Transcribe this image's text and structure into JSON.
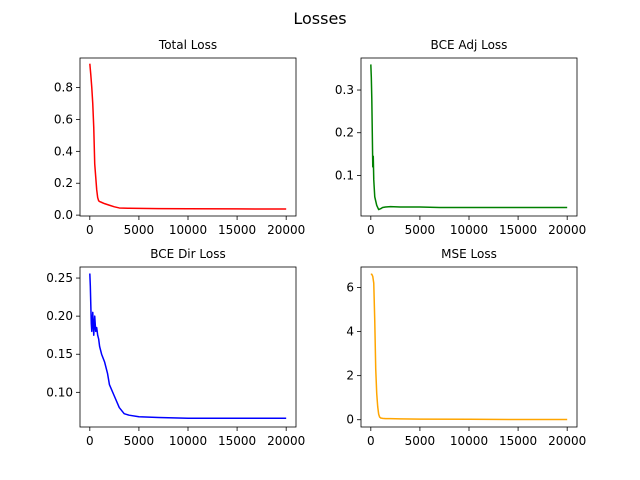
{
  "figure": {
    "title": "Losses"
  },
  "chart_data": [
    {
      "type": "line",
      "title": "Total Loss",
      "color": "#ff0000",
      "xlim": [
        -1000,
        21000
      ],
      "ylim": [
        -0.0055,
        0.9855
      ],
      "xticks": [
        0,
        5000,
        10000,
        15000,
        20000
      ],
      "xtick_labels": [
        "0",
        "5000",
        "10000",
        "15000",
        "20000"
      ],
      "yticks": [
        0.0,
        0.2,
        0.4,
        0.6,
        0.8
      ],
      "ytick_labels": [
        "0.0",
        "0.2",
        "0.4",
        "0.6",
        "0.8"
      ],
      "series": [
        {
          "x": [
            0,
            100,
            200,
            300,
            400,
            500,
            600,
            700,
            800,
            900,
            1000,
            1200,
            1500,
            2000,
            2500,
            3000,
            4000,
            5000,
            7000,
            10000,
            15000,
            20000
          ],
          "values": [
            0.95,
            0.88,
            0.8,
            0.7,
            0.55,
            0.32,
            0.24,
            0.16,
            0.11,
            0.09,
            0.085,
            0.08,
            0.072,
            0.062,
            0.052,
            0.045,
            0.043,
            0.042,
            0.041,
            0.04,
            0.039,
            0.038
          ]
        }
      ]
    },
    {
      "type": "line",
      "title": "BCE Adj Loss",
      "color": "#008000",
      "xlim": [
        -1000,
        21000
      ],
      "ylim": [
        0.005,
        0.375
      ],
      "xticks": [
        0,
        5000,
        10000,
        15000,
        20000
      ],
      "xtick_labels": [
        "0",
        "5000",
        "10000",
        "15000",
        "20000"
      ],
      "yticks": [
        0.1,
        0.2,
        0.3
      ],
      "ytick_labels": [
        "0.1",
        "0.2",
        "0.3"
      ],
      "series": [
        {
          "x": [
            0,
            50,
            100,
            150,
            200,
            250,
            300,
            350,
            400,
            500,
            600,
            700,
            800,
            1000,
            1200,
            1500,
            2000,
            3000,
            5000,
            7000,
            10000,
            15000,
            20000
          ],
          "values": [
            0.36,
            0.33,
            0.28,
            0.2,
            0.12,
            0.145,
            0.09,
            0.07,
            0.05,
            0.04,
            0.03,
            0.025,
            0.02,
            0.022,
            0.025,
            0.026,
            0.027,
            0.026,
            0.026,
            0.025,
            0.025,
            0.025,
            0.025
          ]
        }
      ]
    },
    {
      "type": "line",
      "title": "BCE Dir Loss",
      "color": "#0000ff",
      "xlim": [
        -1000,
        21000
      ],
      "ylim": [
        0.0545,
        0.2645
      ],
      "xticks": [
        0,
        5000,
        10000,
        15000,
        20000
      ],
      "xtick_labels": [
        "0",
        "5000",
        "10000",
        "15000",
        "20000"
      ],
      "yticks": [
        0.1,
        0.15,
        0.2,
        0.25
      ],
      "ytick_labels": [
        "0.10",
        "0.15",
        "0.20",
        "0.25"
      ],
      "series": [
        {
          "x": [
            0,
            50,
            100,
            150,
            200,
            300,
            400,
            500,
            600,
            700,
            800,
            900,
            1000,
            1200,
            1500,
            1800,
            2000,
            2500,
            3000,
            3500,
            4000,
            5000,
            7000,
            10000,
            15000,
            20000
          ],
          "values": [
            0.256,
            0.24,
            0.215,
            0.19,
            0.18,
            0.205,
            0.175,
            0.2,
            0.18,
            0.185,
            0.175,
            0.17,
            0.16,
            0.15,
            0.14,
            0.125,
            0.11,
            0.095,
            0.08,
            0.072,
            0.07,
            0.068,
            0.067,
            0.066,
            0.066,
            0.066
          ]
        }
      ]
    },
    {
      "type": "line",
      "title": "MSE Loss",
      "color": "#ffa500",
      "xlim": [
        -1000,
        21000
      ],
      "ylim": [
        -0.33,
        6.93
      ],
      "xticks": [
        0,
        5000,
        10000,
        15000,
        20000
      ],
      "xtick_labels": [
        "0",
        "5000",
        "10000",
        "15000",
        "20000"
      ],
      "yticks": [
        0,
        2,
        4,
        6
      ],
      "ytick_labels": [
        "0",
        "2",
        "4",
        "6"
      ],
      "series": [
        {
          "x": [
            0,
            100,
            200,
            300,
            400,
            500,
            600,
            700,
            800,
            900,
            1000,
            1200,
            1500,
            2000,
            3000,
            5000,
            10000,
            15000,
            20000
          ],
          "values": [
            6.6,
            6.6,
            6.5,
            6.2,
            4.5,
            2.3,
            1.2,
            0.6,
            0.25,
            0.12,
            0.08,
            0.06,
            0.05,
            0.05,
            0.04,
            0.03,
            0.02,
            0.01,
            0.01
          ]
        }
      ]
    }
  ]
}
